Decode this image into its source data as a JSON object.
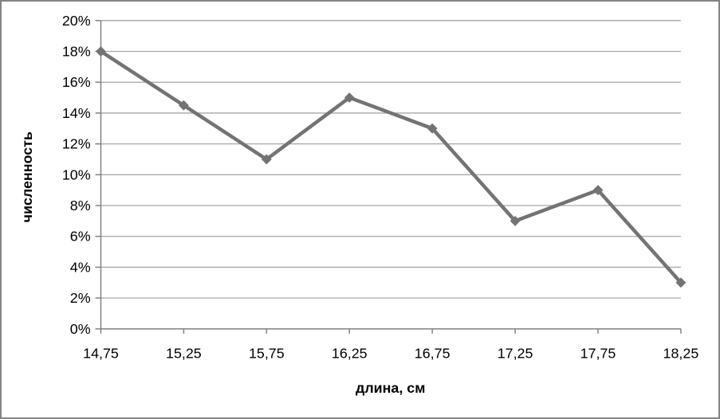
{
  "chart_data": {
    "type": "line",
    "categories": [
      "14,75",
      "15,25",
      "15,75",
      "16,25",
      "16,75",
      "17,25",
      "17,75",
      "18,25"
    ],
    "values": [
      18,
      14.5,
      11,
      15,
      13,
      7,
      9,
      3
    ],
    "title": "",
    "xlabel": "длина, см",
    "ylabel": "численность",
    "ylim": [
      0,
      20
    ],
    "ytick_step": 2,
    "ytick_labels": [
      "0%",
      "2%",
      "4%",
      "6%",
      "8%",
      "10%",
      "12%",
      "14%",
      "16%",
      "18%",
      "20%"
    ],
    "grid": "horizontal",
    "legend": "none",
    "marker": "diamond",
    "colors": {
      "line": "#737373",
      "marker": "#737373",
      "gridline": "#A6A6A6",
      "axis": "#808080",
      "text": "#000000",
      "background": "#FFFFFF",
      "frame_border": "#848484"
    }
  }
}
